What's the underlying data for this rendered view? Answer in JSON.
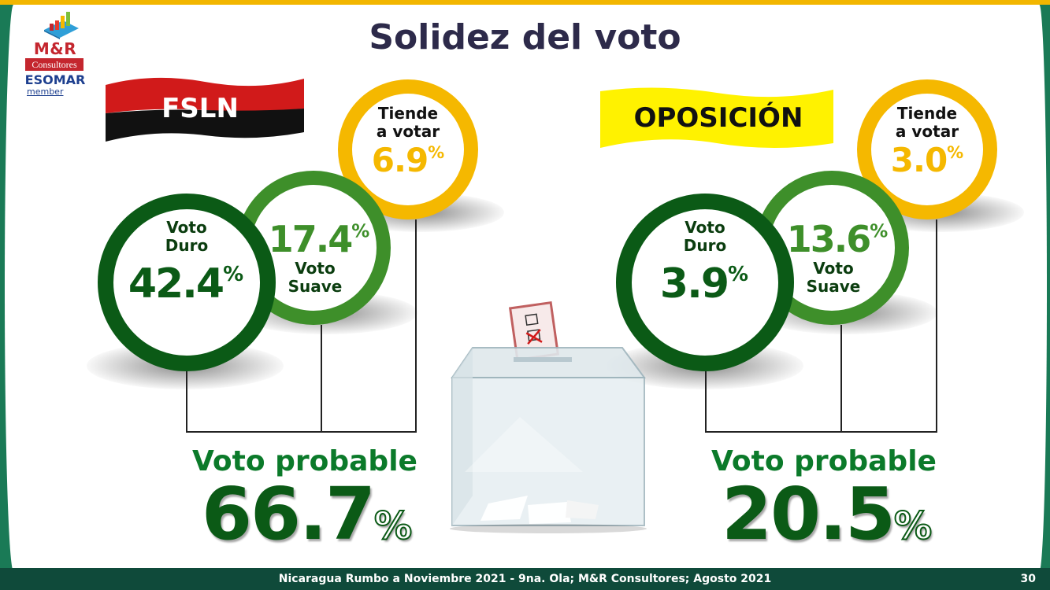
{
  "title": "Solidez del voto",
  "logo": {
    "brand": "M&R",
    "sub": "Consultores",
    "association": "ESOMAR",
    "member": "member"
  },
  "fsln": {
    "name": "FSLN",
    "duro": {
      "label_line1": "Voto",
      "label_line2": "Duro",
      "value": "42.4",
      "unit": "%"
    },
    "suave": {
      "value": "17.4",
      "unit": "%",
      "label_line1": "Voto",
      "label_line2": "Suave"
    },
    "tiende": {
      "label_line1": "Tiende",
      "label_line2": "a votar",
      "value": "6.9",
      "unit": "%"
    },
    "probable_label": "Voto probable",
    "probable_value": "66.7",
    "probable_unit": "%"
  },
  "oposicion": {
    "name": "OPOSICIÓN",
    "duro": {
      "label_line1": "Voto",
      "label_line2": "Duro",
      "value": "3.9",
      "unit": "%"
    },
    "suave": {
      "value": "13.6",
      "unit": "%",
      "label_line1": "Voto",
      "label_line2": "Suave"
    },
    "tiende": {
      "label_line1": "Tiende",
      "label_line2": "a votar",
      "value": "3.0",
      "unit": "%"
    },
    "probable_label": "Voto probable",
    "probable_value": "20.5",
    "probable_unit": "%"
  },
  "footer": {
    "text": "Nicaragua Rumbo a Noviembre 2021 -  9na. Ola; M&R Consultores; Agosto 2021",
    "page": "30"
  },
  "colors": {
    "top_bar": "#f2b600",
    "side_band": "#1a7a56",
    "footer_bg": "#0f4a3a",
    "duro": "#0b5a16",
    "suave": "#3e8f2a",
    "tiende": "#f5b800",
    "fsln_red": "#d11a1a",
    "fsln_black": "#111111",
    "oposicion_yellow": "#fff200"
  },
  "icons": [
    "ballot-box-icon",
    "ballot-paper-icon"
  ]
}
